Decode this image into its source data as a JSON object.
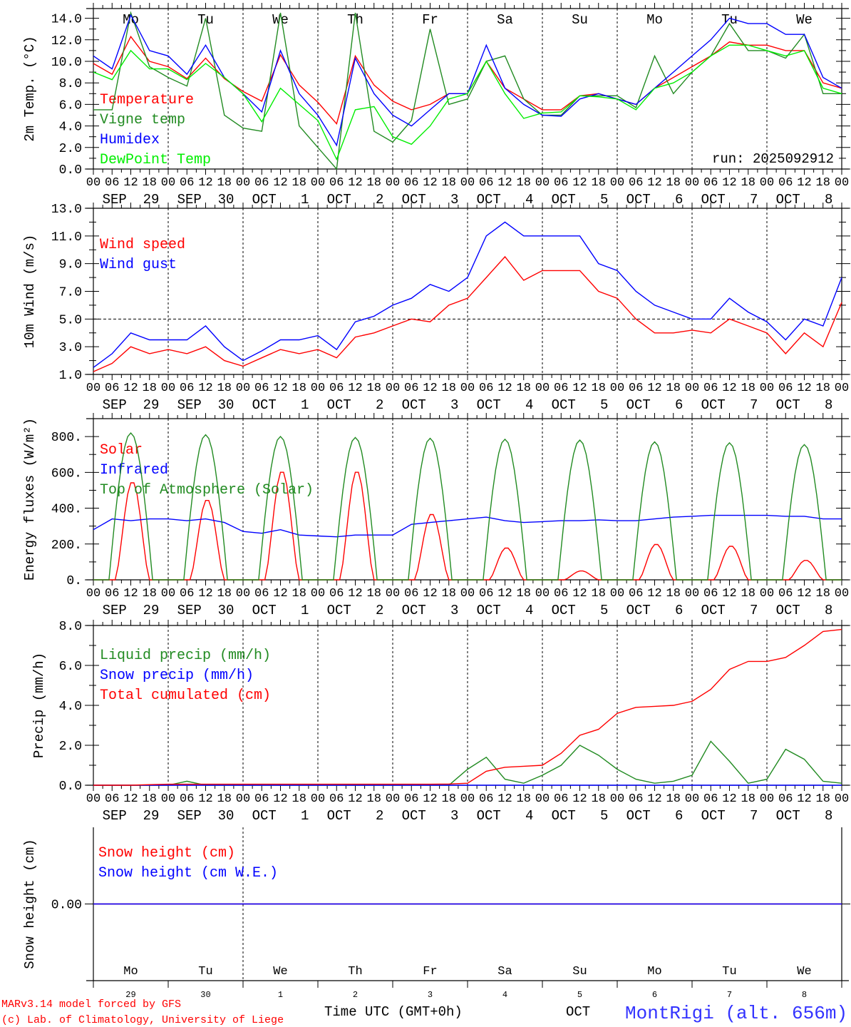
{
  "colors": {
    "red": "#ff0000",
    "green": "#228b22",
    "blue": "#0000ff",
    "lime": "#00ee00",
    "black": "#000000"
  },
  "x_axis": {
    "hour_labels": [
      "00",
      "06",
      "12",
      "18"
    ],
    "day_labels": [
      "Mo",
      "Tu",
      "We",
      "Th",
      "Fr",
      "Sa",
      "Su",
      "Mo",
      "Tu",
      "We"
    ],
    "weekend": [
      false,
      false,
      false,
      false,
      false,
      true,
      true,
      false,
      false,
      false
    ],
    "date_labels": [
      "SEP  29",
      "SEP  30",
      "OCT   1",
      "OCT   2",
      "OCT   3",
      "OCT   4",
      "OCT   5",
      "OCT   6",
      "OCT   7",
      "OCT   8"
    ],
    "day_numbers": [
      "29",
      "30",
      "1",
      "2",
      "3",
      "4",
      "5",
      "6",
      "7",
      "8"
    ],
    "month_label": "OCT",
    "time_label": "Time UTC (GMT+0h)"
  },
  "footer": {
    "model": "MARv3.14 model forced by GFS",
    "copyright": "(c) Lab. of Climatology, University of Liege",
    "station": "MontRigi (alt. 656m)"
  },
  "chart_data": [
    {
      "type": "line",
      "ylabel": "2m Temp. (°C)",
      "ylim": [
        0,
        14.9
      ],
      "yticks": [
        "0.0",
        "2.0",
        "4.0",
        "6.0",
        "8.0",
        "10.0",
        "12.0",
        "14.0"
      ],
      "ytick_values": [
        0,
        2,
        4,
        6,
        8,
        10,
        12,
        14
      ],
      "annotation": "run: 2025092912",
      "x_step_hours": 6,
      "series": [
        {
          "name": "Temperature",
          "color": "#ff0000",
          "values": [
            9.8,
            8.8,
            12.3,
            10.0,
            9.5,
            8.4,
            10.3,
            8.4,
            7.2,
            6.3,
            10.6,
            7.8,
            6.2,
            4.2,
            10.5,
            7.8,
            6.3,
            5.5,
            6.0,
            7.0,
            7.0,
            10.0,
            7.5,
            6.5,
            5.5,
            5.5,
            6.8,
            7.0,
            6.5,
            6.0,
            7.5,
            8.5,
            9.5,
            10.5,
            11.8,
            11.5,
            11.5,
            11.0,
            11.0,
            8.0,
            7.5
          ]
        },
        {
          "name": "Vigne temp",
          "color": "#228b22",
          "values": [
            5.5,
            5.5,
            14.5,
            9.5,
            8.5,
            7.7,
            14.0,
            5.0,
            3.8,
            3.5,
            14.5,
            4.0,
            2.0,
            0.0,
            14.5,
            3.5,
            2.5,
            4.5,
            13.0,
            6.0,
            6.5,
            10.0,
            10.5,
            6.5,
            5.0,
            5.0,
            6.8,
            6.8,
            6.8,
            5.7,
            10.5,
            7.0,
            9.0,
            10.5,
            13.5,
            11.0,
            11.0,
            10.3,
            12.5,
            7.0,
            7.0
          ]
        },
        {
          "name": "Humidex",
          "color": "#0000ff",
          "values": [
            10.5,
            9.3,
            14.3,
            11.0,
            10.5,
            8.8,
            11.5,
            8.5,
            7.0,
            5.3,
            11.0,
            7.0,
            5.0,
            2.2,
            10.3,
            7.0,
            5.0,
            4.0,
            5.5,
            7.0,
            7.0,
            11.5,
            7.5,
            6.0,
            5.0,
            4.9,
            6.5,
            7.0,
            6.5,
            6.0,
            7.5,
            9.0,
            10.5,
            12.0,
            14.0,
            13.5,
            13.5,
            12.5,
            12.5,
            8.5,
            7.5
          ]
        },
        {
          "name": "DewPoint Temp",
          "color": "#00ee00",
          "values": [
            9.0,
            8.3,
            11.0,
            9.3,
            9.3,
            8.3,
            9.8,
            8.5,
            7.0,
            4.4,
            7.5,
            6.0,
            4.5,
            0.9,
            5.5,
            5.8,
            3.0,
            2.3,
            4.0,
            6.5,
            7.0,
            10.0,
            7.0,
            4.7,
            5.2,
            5.3,
            6.8,
            6.7,
            6.5,
            5.5,
            7.5,
            8.0,
            9.0,
            10.5,
            11.5,
            11.5,
            11.0,
            10.5,
            11.0,
            7.5,
            7.0
          ]
        }
      ]
    },
    {
      "type": "line",
      "ylabel": "10m Wind (m/s)",
      "ylim": [
        1,
        13
      ],
      "yticks": [
        "1.0",
        "3.0",
        "5.0",
        "7.0",
        "9.0",
        "11.0",
        "13.0"
      ],
      "ytick_values": [
        1,
        3,
        5,
        7,
        9,
        11,
        13
      ],
      "reference_line": 5,
      "x_step_hours": 6,
      "series": [
        {
          "name": "Wind speed",
          "color": "#ff0000",
          "values": [
            1.2,
            1.8,
            3.0,
            2.5,
            2.8,
            2.5,
            3.0,
            2.0,
            1.6,
            2.2,
            2.8,
            2.5,
            2.8,
            2.2,
            3.7,
            4.0,
            4.5,
            5.0,
            4.8,
            6.0,
            6.5,
            8.0,
            9.5,
            7.8,
            8.5,
            8.5,
            8.5,
            7.0,
            6.5,
            5.0,
            4.0,
            4.0,
            4.2,
            4.0,
            5.0,
            4.5,
            4.0,
            2.5,
            4.0,
            3.0,
            6.2
          ]
        },
        {
          "name": "Wind gust",
          "color": "#0000ff",
          "values": [
            1.5,
            2.5,
            4.0,
            3.5,
            3.5,
            3.5,
            4.5,
            3.0,
            2.0,
            2.7,
            3.5,
            3.5,
            3.8,
            2.8,
            4.8,
            5.2,
            6.0,
            6.5,
            7.5,
            7.0,
            8.0,
            11.0,
            12.0,
            11.0,
            11.0,
            11.0,
            11.0,
            9.0,
            8.5,
            7.0,
            6.0,
            5.5,
            5.0,
            5.0,
            6.5,
            5.5,
            4.8,
            3.5,
            5.0,
            4.5,
            8.0
          ]
        }
      ]
    },
    {
      "type": "line",
      "ylabel": "Energy fluxes (W/m²)",
      "ylim": [
        0,
        900
      ],
      "yticks": [
        "0.",
        "200.",
        "400.",
        "600.",
        "800."
      ],
      "ytick_values": [
        0,
        200,
        400,
        600,
        800
      ],
      "series": [
        {
          "name": "Solar",
          "color": "#ff0000",
          "daily_peak": [
            550,
            450,
            610,
            610,
            370,
            180,
            50,
            200,
            190,
            110
          ]
        },
        {
          "name": "Infrared",
          "color": "#0000ff",
          "x_step_hours": 6,
          "values": [
            280,
            340,
            330,
            340,
            340,
            330,
            340,
            320,
            270,
            260,
            280,
            250,
            245,
            240,
            250,
            250,
            250,
            310,
            320,
            330,
            340,
            350,
            330,
            320,
            325,
            330,
            330,
            335,
            330,
            330,
            340,
            350,
            355,
            360,
            360,
            360,
            360,
            355,
            355,
            340,
            340
          ]
        },
        {
          "name": "Top of Atmosphere (Solar)",
          "color": "#228b22",
          "daily_peak": [
            820,
            810,
            800,
            795,
            790,
            785,
            780,
            770,
            765,
            755
          ]
        }
      ]
    },
    {
      "type": "line",
      "ylabel": "Precip (mm/h)",
      "ylim": [
        0,
        8
      ],
      "yticks": [
        "0.0",
        "2.0",
        "4.0",
        "6.0",
        "8.0"
      ],
      "ytick_values": [
        0,
        2,
        4,
        6,
        8
      ],
      "x_step_hours": 6,
      "series": [
        {
          "name": "Liquid precip (mm/h)",
          "color": "#228b22",
          "values": [
            0,
            0,
            0,
            0,
            0,
            0.2,
            0,
            0,
            0,
            0,
            0,
            0,
            0,
            0,
            0,
            0,
            0,
            0,
            0,
            0,
            0.8,
            1.4,
            0.3,
            0.1,
            0.5,
            1.0,
            2.0,
            1.5,
            0.8,
            0.3,
            0.1,
            0.2,
            0.5,
            2.2,
            1.2,
            0.1,
            0.3,
            1.8,
            1.3,
            0.2,
            0.1
          ]
        },
        {
          "name": "Snow precip (mm/h)",
          "color": "#0000ff",
          "values": [
            0,
            0,
            0,
            0,
            0,
            0,
            0,
            0,
            0,
            0,
            0,
            0,
            0,
            0,
            0,
            0,
            0,
            0,
            0,
            0,
            0,
            0,
            0,
            0,
            0,
            0,
            0,
            0,
            0,
            0,
            0,
            0,
            0,
            0,
            0,
            0,
            0,
            0,
            0,
            0,
            0
          ]
        },
        {
          "name": "Total cumulated (cm)",
          "color": "#ff0000",
          "values": [
            0,
            0,
            0,
            0.03,
            0.05,
            0.05,
            0.05,
            0.05,
            0.05,
            0.05,
            0.05,
            0.05,
            0.05,
            0.05,
            0.05,
            0.05,
            0.05,
            0.05,
            0.05,
            0.06,
            0.1,
            0.7,
            0.9,
            0.95,
            1.0,
            1.6,
            2.5,
            2.8,
            3.6,
            3.9,
            3.95,
            4.0,
            4.2,
            4.8,
            5.8,
            6.2,
            6.2,
            6.4,
            7.0,
            7.7,
            7.8
          ]
        }
      ]
    },
    {
      "type": "line",
      "ylabel": "Snow height (cm)",
      "ylim": [
        -1,
        1
      ],
      "yticks": [
        "0.00"
      ],
      "ytick_values": [
        0
      ],
      "x_step_hours": 6,
      "series": [
        {
          "name": "Snow height (cm)",
          "color": "#ff0000",
          "values": [
            0,
            0,
            0,
            0,
            0,
            0,
            0,
            0,
            0,
            0,
            0,
            0,
            0,
            0,
            0,
            0,
            0,
            0,
            0,
            0,
            0,
            0,
            0,
            0,
            0,
            0,
            0,
            0,
            0,
            0,
            0,
            0,
            0,
            0,
            0,
            0,
            0,
            0,
            0,
            0,
            0
          ]
        },
        {
          "name": "Snow height (cm W.E.)",
          "color": "#0000ff",
          "values": [
            0,
            0,
            0,
            0,
            0,
            0,
            0,
            0,
            0,
            0,
            0,
            0,
            0,
            0,
            0,
            0,
            0,
            0,
            0,
            0,
            0,
            0,
            0,
            0,
            0,
            0,
            0,
            0,
            0,
            0,
            0,
            0,
            0,
            0,
            0,
            0,
            0,
            0,
            0,
            0,
            0
          ]
        }
      ]
    }
  ]
}
